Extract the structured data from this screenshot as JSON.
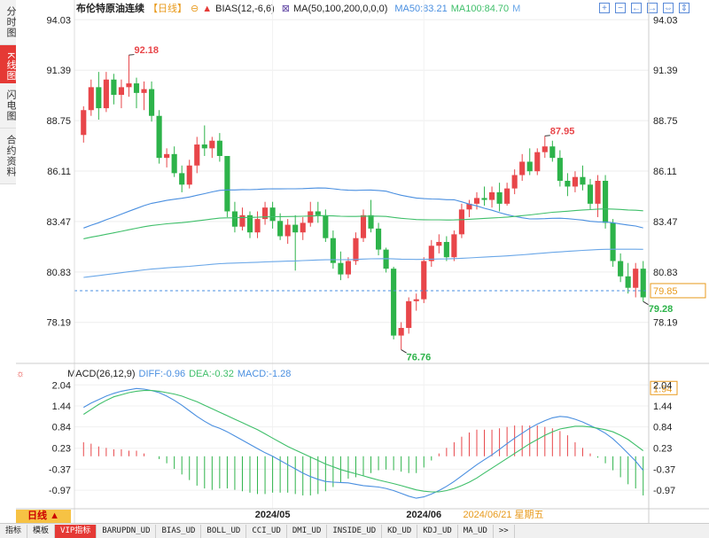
{
  "side_tabs": [
    "分时图",
    "K线图",
    "闪电图",
    "合约资料"
  ],
  "header": {
    "title": "布伦特原油连续",
    "period_tag": "【日线】",
    "bias_label": "BIAS(12,-6,6)",
    "ma_label": "MA(50,100,200,0,0,0)",
    "ma50_label": "MA50:83.21",
    "ma100_label": "MA100:84.70",
    "ma_more": "M"
  },
  "controls": [
    "+",
    "−",
    "←",
    "→",
    "⇔",
    "⇕"
  ],
  "macd_header": {
    "title": "MACD(26,12,9)",
    "diff": "DIFF:-0.96",
    "dea": "DEA:-0.32",
    "macd": "MACD:-1.28"
  },
  "bottom": {
    "period": "日线 ▲",
    "tabs": [
      "指标",
      "模板",
      "VIP指标",
      "BARUPDN_UD",
      "BIAS_UD",
      "BOLL_UD",
      "CCI_UD",
      "DMI_UD",
      "INSIDE_UD",
      "KD_UD",
      "KDJ_UD",
      "MA_UD",
      ">>"
    ]
  },
  "colors": {
    "up": "#e8464a",
    "down": "#2db34a",
    "ma50": "#4a8fe0",
    "ma100": "#3fbf6a",
    "ma200": "#6aa7e8",
    "diff": "#4a8fe0",
    "dea": "#3fbf6a"
  },
  "chart_data": [
    {
      "type": "candlestick",
      "ylim": [
        76.6,
        94.6
      ],
      "yticks": [
        "94.03",
        "91.39",
        "88.75",
        "86.11",
        "83.47",
        "80.83",
        "78.19"
      ],
      "xticks": [
        "2024/05",
        "2024/06"
      ],
      "cursor_date": "2024/06/21 星期五",
      "current_price": "79.85",
      "annotations": {
        "high": "92.18",
        "peak": "87.95",
        "low": "76.76",
        "last_low": "79.28"
      },
      "ohlc": [
        [
          88.0,
          89.5,
          87.6,
          89.3
        ],
        [
          89.3,
          90.9,
          89.0,
          90.5
        ],
        [
          90.5,
          91.3,
          88.8,
          89.4
        ],
        [
          89.4,
          91.3,
          89.2,
          90.9
        ],
        [
          90.9,
          91.2,
          89.6,
          90.1
        ],
        [
          90.1,
          90.9,
          89.4,
          90.5
        ],
        [
          90.5,
          92.18,
          90.0,
          90.7
        ],
        [
          90.7,
          91.0,
          89.4,
          90.2
        ],
        [
          90.2,
          90.8,
          89.3,
          90.4
        ],
        [
          90.4,
          90.8,
          88.7,
          89.0
        ],
        [
          89.0,
          89.3,
          86.5,
          86.8
        ],
        [
          86.8,
          87.3,
          86.3,
          87.0
        ],
        [
          87.0,
          87.4,
          85.8,
          86.0
        ],
        [
          86.0,
          86.4,
          85.0,
          85.4
        ],
        [
          85.4,
          86.7,
          85.2,
          86.4
        ],
        [
          86.4,
          87.9,
          86.0,
          87.5
        ],
        [
          87.5,
          88.5,
          86.9,
          87.3
        ],
        [
          87.3,
          87.9,
          86.8,
          87.7
        ],
        [
          87.7,
          88.1,
          86.6,
          86.9
        ],
        [
          86.9,
          86.9,
          83.7,
          84.0
        ],
        [
          84.0,
          84.5,
          82.9,
          83.2
        ],
        [
          83.2,
          84.2,
          83.0,
          83.8
        ],
        [
          83.8,
          84.0,
          82.6,
          82.9
        ],
        [
          82.9,
          84.0,
          82.6,
          83.6
        ],
        [
          83.6,
          84.5,
          83.3,
          84.2
        ],
        [
          84.2,
          84.5,
          83.1,
          83.5
        ],
        [
          83.5,
          83.9,
          82.5,
          82.7
        ],
        [
          82.7,
          83.6,
          82.3,
          83.3
        ],
        [
          83.3,
          83.8,
          80.9,
          82.9
        ],
        [
          82.9,
          83.7,
          82.5,
          83.4
        ],
        [
          83.4,
          84.5,
          83.2,
          84.0
        ],
        [
          84.0,
          84.5,
          83.4,
          83.8
        ],
        [
          83.8,
          84.1,
          82.4,
          82.6
        ],
        [
          82.6,
          83.0,
          81.0,
          81.3
        ],
        [
          81.3,
          81.9,
          80.4,
          80.7
        ],
        [
          80.7,
          81.6,
          80.5,
          81.4
        ],
        [
          81.4,
          82.9,
          81.2,
          82.6
        ],
        [
          82.6,
          84.1,
          82.4,
          83.8
        ],
        [
          83.8,
          84.6,
          82.9,
          83.1
        ],
        [
          83.1,
          83.4,
          81.7,
          82.0
        ],
        [
          82.0,
          82.1,
          80.8,
          81.0
        ],
        [
          81.0,
          81.1,
          77.3,
          77.5
        ],
        [
          77.5,
          78.2,
          76.76,
          77.9
        ],
        [
          77.9,
          79.5,
          77.6,
          79.3
        ],
        [
          79.3,
          79.7,
          78.8,
          79.4
        ],
        [
          79.4,
          81.6,
          79.2,
          81.4
        ],
        [
          81.4,
          82.5,
          81.1,
          82.2
        ],
        [
          82.2,
          82.8,
          81.8,
          82.4
        ],
        [
          82.4,
          82.7,
          81.4,
          81.6
        ],
        [
          81.6,
          83.0,
          81.4,
          82.8
        ],
        [
          82.8,
          84.4,
          82.6,
          84.1
        ],
        [
          84.1,
          84.6,
          83.7,
          84.4
        ],
        [
          84.4,
          85.0,
          84.1,
          84.7
        ],
        [
          84.7,
          85.3,
          84.3,
          84.6
        ],
        [
          84.6,
          85.3,
          84.2,
          85.0
        ],
        [
          85.0,
          85.5,
          84.0,
          84.4
        ],
        [
          84.4,
          85.5,
          84.3,
          85.2
        ],
        [
          85.2,
          86.2,
          84.9,
          85.9
        ],
        [
          85.9,
          87.0,
          85.6,
          86.6
        ],
        [
          86.6,
          87.3,
          85.9,
          86.1
        ],
        [
          86.1,
          87.3,
          85.9,
          87.1
        ],
        [
          87.1,
          87.95,
          86.8,
          87.4
        ],
        [
          87.4,
          87.7,
          86.6,
          86.8
        ],
        [
          86.8,
          87.2,
          85.3,
          85.6
        ],
        [
          85.6,
          86.0,
          84.8,
          85.3
        ],
        [
          85.3,
          86.1,
          85.0,
          85.8
        ],
        [
          85.8,
          86.4,
          85.1,
          85.4
        ],
        [
          85.4,
          85.7,
          84.1,
          84.4
        ],
        [
          84.4,
          85.9,
          83.7,
          85.6
        ],
        [
          85.6,
          85.9,
          83.1,
          83.4
        ],
        [
          83.4,
          83.6,
          81.1,
          81.4
        ],
        [
          81.4,
          81.8,
          80.3,
          80.6
        ],
        [
          80.6,
          81.3,
          79.7,
          80.0
        ],
        [
          80.0,
          81.3,
          79.5,
          81.0
        ],
        [
          81.0,
          81.4,
          79.28,
          79.5
        ]
      ]
    },
    {
      "type": "macd",
      "ylim": [
        -1.45,
        2.2
      ],
      "yticks": [
        "2.04",
        "1.44",
        "0.84",
        "0.23",
        "-0.37",
        "-0.97"
      ],
      "cursor_value": "1.94",
      "diff": [
        1.4,
        1.52,
        1.62,
        1.72,
        1.8,
        1.86,
        1.9,
        1.94,
        1.92,
        1.88,
        1.82,
        1.72,
        1.6,
        1.46,
        1.3,
        1.14,
        1.0,
        0.88,
        0.8,
        0.7,
        0.58,
        0.46,
        0.34,
        0.22,
        0.1,
        0.0,
        -0.12,
        -0.24,
        -0.36,
        -0.48,
        -0.58,
        -0.66,
        -0.72,
        -0.74,
        -0.75,
        -0.76,
        -0.8,
        -0.84,
        -0.86,
        -0.88,
        -0.92,
        -0.98,
        -1.06,
        -1.14,
        -1.2,
        -1.16,
        -1.08,
        -0.98,
        -0.86,
        -0.72,
        -0.56,
        -0.4,
        -0.24,
        -0.1,
        0.04,
        0.2,
        0.36,
        0.52,
        0.66,
        0.8,
        0.92,
        1.02,
        1.1,
        1.14,
        1.12,
        1.06,
        0.98,
        0.88,
        0.78,
        0.66,
        0.5,
        0.3,
        0.08,
        -0.14,
        -0.4
      ],
      "dea": [
        1.2,
        1.34,
        1.48,
        1.6,
        1.7,
        1.76,
        1.82,
        1.86,
        1.88,
        1.88,
        1.86,
        1.82,
        1.78,
        1.72,
        1.64,
        1.56,
        1.46,
        1.36,
        1.26,
        1.16,
        1.06,
        0.96,
        0.86,
        0.76,
        0.64,
        0.52,
        0.4,
        0.28,
        0.18,
        0.08,
        -0.02,
        -0.12,
        -0.22,
        -0.3,
        -0.38,
        -0.44,
        -0.5,
        -0.56,
        -0.62,
        -0.68,
        -0.73,
        -0.78,
        -0.84,
        -0.9,
        -0.96,
        -1.0,
        -1.02,
        -1.02,
        -0.98,
        -0.92,
        -0.84,
        -0.74,
        -0.62,
        -0.48,
        -0.34,
        -0.2,
        -0.06,
        0.08,
        0.22,
        0.36,
        0.48,
        0.6,
        0.7,
        0.78,
        0.82,
        0.86,
        0.86,
        0.84,
        0.8,
        0.76,
        0.7,
        0.6,
        0.48,
        0.32,
        0.16
      ],
      "macd": [
        0.4,
        0.36,
        0.28,
        0.24,
        0.2,
        0.2,
        0.16,
        0.16,
        0.08,
        0.0,
        -0.08,
        -0.2,
        -0.36,
        -0.52,
        -0.68,
        -0.84,
        -0.92,
        -0.96,
        -0.92,
        -0.92,
        -0.96,
        -1.0,
        -1.04,
        -1.08,
        -1.08,
        -1.04,
        -1.04,
        -1.04,
        -1.08,
        -1.12,
        -1.12,
        -1.08,
        -1.0,
        -0.88,
        -0.74,
        -0.64,
        -0.6,
        -0.56,
        -0.48,
        -0.4,
        -0.38,
        -0.4,
        -0.44,
        -0.48,
        -0.48,
        -0.32,
        -0.12,
        0.08,
        0.24,
        0.4,
        0.56,
        0.68,
        0.76,
        0.76,
        0.76,
        0.8,
        0.84,
        0.88,
        0.88,
        0.88,
        0.88,
        0.84,
        0.8,
        0.72,
        0.6,
        0.4,
        0.24,
        0.08,
        -0.04,
        -0.2,
        -0.4,
        -0.6,
        -0.8,
        -0.92,
        -1.12
      ]
    }
  ]
}
